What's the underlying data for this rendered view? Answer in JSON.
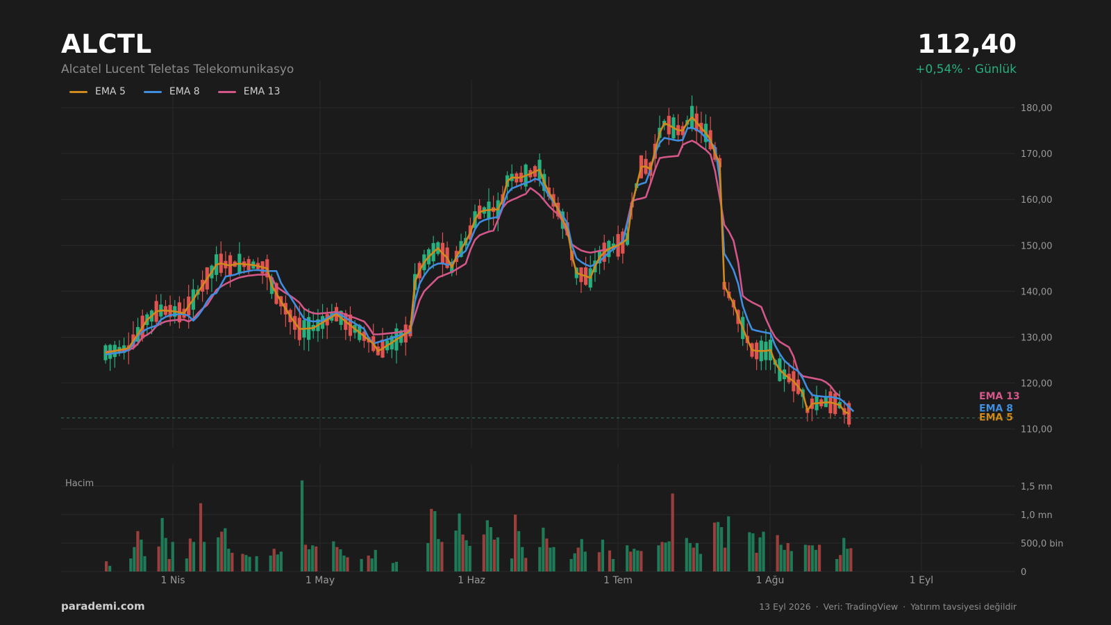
{
  "header": {
    "ticker": "ALCTL",
    "company": "Alcatel Lucent Teletas Telekomunikasyo",
    "price": "112,40",
    "change": "+0,54%",
    "period": "Günlük"
  },
  "footer": {
    "brand": "parademi.com",
    "date": "13 Eyl 2026",
    "source": "Veri: TradingView",
    "disclaimer": "Yatırım tavsiyesi değildir"
  },
  "colors": {
    "background": "#1b1b1b",
    "up": "#27b07e",
    "down": "#e0534f",
    "ema5": "#d08a1b",
    "ema8": "#3f8ee0",
    "ema13": "#d4578a",
    "grid": "#2a2a2a",
    "axis_text": "#9a9a9a"
  },
  "chart_data": [
    {
      "type": "candlestick",
      "title": "ALCTL",
      "series": [
        {
          "name": "EMA 5",
          "values": [
            126.6,
            126.8,
            127.0,
            127.2,
            127.4,
            127.6,
            129.2,
            130.6,
            132.2,
            133.8,
            134.6,
            135.6,
            135.8,
            135.8,
            135.7,
            135.6,
            135.4,
            135.2,
            136.8,
            138.2,
            139.8,
            141.2,
            142.8,
            144.2,
            145.8,
            146.1,
            145.8,
            145.6,
            145.9,
            146.0,
            145.9,
            145.8,
            145.7,
            145.5,
            145.2,
            145.0,
            141.2,
            139.5,
            137.8,
            136.2,
            134.6,
            133.1,
            131.8,
            131.8,
            131.9,
            132.0,
            132.6,
            133.2,
            133.8,
            134.4,
            135.0,
            134.2,
            133.4,
            132.6,
            131.8,
            131.0,
            130.2,
            129.4,
            128.6,
            127.0,
            127.5,
            128.2,
            128.8,
            129.5,
            130.1,
            130.8,
            131.4,
            142.0,
            144.5,
            146.3,
            147.5,
            148.5,
            149.4,
            148.2,
            147.3,
            145.2,
            147.6,
            149.2,
            150.8,
            152.8,
            155.6,
            157.2,
            157.6,
            157.7,
            157.8,
            157.8,
            160.0,
            164.0,
            164.8,
            164.7,
            164.8,
            165.2,
            165.6,
            166.1,
            166.5,
            163.7,
            161.6,
            159.8,
            157.8,
            155.5,
            153.6,
            147.8,
            144.0,
            143.6,
            143.3,
            142.9,
            145.4,
            147.4,
            148.5,
            149.2,
            149.7,
            150.0,
            150.6,
            151.4,
            158.8,
            163.0,
            167.1,
            167.2,
            166.6,
            170.5,
            174.5,
            176.6,
            176.2,
            175.6,
            175.1,
            175.0,
            176.8,
            177.9,
            176.8,
            175.6,
            174.5,
            173.0,
            170.0,
            168.0,
            141.2,
            139.2,
            137.3,
            134.4,
            132.0,
            129.5,
            127.2,
            127.0,
            127.0,
            127.0,
            127.2,
            124.5,
            122.9,
            121.9,
            121.1,
            120.4,
            119.2,
            117.8,
            114.0,
            115.5,
            115.6,
            115.7,
            115.8,
            115.8,
            115.5,
            115.2,
            113.8,
            113.3
          ],
          "color": "#d08a1b"
        },
        {
          "name": "EMA 8",
          "values": [
            126.2,
            126.4,
            126.5,
            126.6,
            126.8,
            127.2,
            128.5,
            130.2,
            131.2,
            131.8,
            132.2,
            132.5,
            133.8,
            134.4,
            134.8,
            134.9,
            135.0,
            135.0,
            134.6,
            133.6,
            134.6,
            136.0,
            137.8,
            139.2,
            139.6,
            141.4,
            143.2,
            143.4,
            143.6,
            144.0,
            144.2,
            144.4,
            144.6,
            144.6,
            144.5,
            144.4,
            144.4,
            144.4,
            141.8,
            140.2,
            138.8,
            137.2,
            135.6,
            134.0,
            133.6,
            133.4,
            133.5,
            133.6,
            134.2,
            134.8,
            135.2,
            134.8,
            134.2,
            133.6,
            133.0,
            132.4,
            131.8,
            129.8,
            128.6,
            128.9,
            129.2,
            129.5,
            129.8,
            130.2,
            130.5,
            130.8,
            131.0,
            137.7,
            141.6,
            143.4,
            144.8,
            145.6,
            146.0,
            146.1,
            145.7,
            146.0,
            147.2,
            148.0,
            148.8,
            151.0,
            153.5,
            155.0,
            155.5,
            155.8,
            156.0,
            156.2,
            158.5,
            161.3,
            162.4,
            162.8,
            163.2,
            163.6,
            163.9,
            164.5,
            164.2,
            162.5,
            160.8,
            159.4,
            158.0,
            156.5,
            154.8,
            150.0,
            147.2,
            146.4,
            145.8,
            145.4,
            145.9,
            146.5,
            147.5,
            148.4,
            149.2,
            150.0,
            151.0,
            154.8,
            158.6,
            163.0,
            163.4,
            163.7,
            166.5,
            170.0,
            172.3,
            173.4,
            173.2,
            173.0,
            172.8,
            173.0,
            175.5,
            175.6,
            175.2,
            174.5,
            173.4,
            172.4,
            171.4,
            164.5,
            148.2,
            146.5,
            144.6,
            141.6,
            136.8,
            134.0,
            131.7,
            131.4,
            131.2,
            131.0,
            130.8,
            128.2,
            126.4,
            124.9,
            124.0,
            123.2,
            122.6,
            121.0,
            118.8,
            117.4,
            117.2,
            117.1,
            117.0,
            117.0,
            116.8,
            116.6,
            115.8,
            114.8,
            113.8
          ],
          "color": "#3f8ee0"
        },
        {
          "name": "EMA 13",
          "values": [
            126.8,
            126.9,
            127.0,
            127.1,
            127.2,
            127.3,
            127.6,
            128.6,
            130.0,
            130.5,
            131.2,
            132.4,
            133.0,
            133.4,
            133.6,
            133.7,
            133.8,
            133.8,
            133.4,
            134.0,
            135.2,
            136.2,
            137.0,
            138.6,
            140.3,
            141.0,
            141.6,
            142.1,
            142.6,
            143.0,
            143.2,
            143.4,
            143.5,
            143.6,
            143.6,
            143.6,
            143.0,
            141.0,
            140.3,
            139.6,
            139.0,
            138.3,
            137.5,
            136.2,
            135.6,
            135.2,
            135.1,
            135.2,
            135.3,
            135.4,
            135.5,
            135.3,
            134.9,
            134.5,
            134.2,
            133.8,
            133.4,
            132.2,
            130.6,
            130.6,
            130.7,
            130.8,
            130.9,
            131.0,
            131.2,
            131.4,
            131.6,
            134.8,
            138.0,
            140.0,
            141.0,
            142.0,
            143.0,
            143.4,
            143.8,
            144.2,
            144.8,
            145.4,
            146.0,
            149.0,
            151.2,
            152.2,
            152.6,
            153.0,
            153.2,
            155.6,
            158.2,
            159.4,
            159.9,
            160.3,
            160.8,
            161.2,
            162.5,
            161.8,
            161.0,
            159.8,
            158.6,
            157.6,
            156.8,
            155.2,
            152.5,
            150.2,
            149.5,
            148.9,
            148.6,
            148.4,
            148.6,
            148.8,
            149.0,
            149.2,
            149.6,
            150.2,
            150.9,
            155.2,
            159.6,
            160.0,
            160.2,
            160.5,
            163.4,
            166.5,
            169.0,
            169.2,
            169.3,
            169.4,
            169.5,
            171.9,
            172.4,
            172.8,
            172.3,
            171.5,
            170.8,
            169.8,
            166.2,
            160.5,
            154.5,
            153.0,
            151.0,
            146.3,
            139.0,
            138.2,
            137.6,
            137.1,
            136.6,
            134.0,
            131.8,
            130.0,
            129.0,
            128.4,
            127.8,
            125.8,
            122.5,
            121.5,
            121.3,
            121.1,
            120.9,
            120.7,
            120.2,
            119.4,
            118.0,
            117.2
          ],
          "color": "#d4578a"
        }
      ],
      "ohlc_summary": "daily candles, 163 sessions, Mar–Sep 2026",
      "x_ticks": [
        "1 Nis",
        "1 May",
        "1 Haz",
        "1 Tem",
        "1 Ağu",
        "1 Eyl"
      ],
      "y_ticks": [
        "180,00",
        "170,00",
        "160,00",
        "150,00",
        "140,00",
        "130,00",
        "120,00",
        "110,00"
      ],
      "ylim": [
        105,
        187
      ],
      "last_price": 112.4,
      "legend_position": "top-left"
    },
    {
      "type": "bar",
      "title": "Hacim",
      "y_ticks": [
        "1,5 mn",
        "1,0 mn",
        "500,0 bin",
        "0"
      ],
      "ylim": [
        0,
        1900000
      ],
      "volume": [
        180000,
        100000,
        0,
        0,
        0,
        0,
        0,
        230000,
        430000,
        710000,
        560000,
        270000,
        0,
        0,
        0,
        440000,
        940000,
        590000,
        220000,
        520000,
        0,
        0,
        0,
        230000,
        580000,
        520000,
        0,
        1200000,
        520000,
        0,
        0,
        0,
        600000,
        700000,
        760000,
        400000,
        330000,
        0,
        0,
        310000,
        290000,
        260000,
        0,
        270000,
        0,
        0,
        0,
        280000,
        400000,
        300000,
        350000,
        0,
        0,
        0,
        0,
        0,
        1600000,
        470000,
        390000,
        460000,
        440000,
        0,
        0,
        0,
        0,
        530000,
        430000,
        390000,
        280000,
        250000,
        0,
        0,
        0,
        220000,
        0,
        280000,
        230000,
        380000,
        0,
        0,
        0,
        0,
        150000,
        170000,
        0,
        0,
        0,
        0,
        0,
        0,
        0,
        0,
        500000,
        1100000,
        1060000,
        570000,
        520000,
        0,
        0,
        0,
        720000,
        1020000,
        650000,
        550000,
        450000,
        0,
        0,
        0,
        650000,
        900000,
        780000,
        560000,
        600000,
        0,
        0,
        0,
        230000,
        1000000,
        710000,
        430000,
        240000,
        0,
        0,
        0,
        430000,
        770000,
        580000,
        420000,
        430000,
        0,
        0,
        0,
        0,
        220000,
        320000,
        420000,
        570000,
        350000,
        0,
        0,
        0,
        340000,
        560000,
        0,
        370000,
        220000,
        0,
        0,
        0,
        460000,
        350000,
        400000,
        370000,
        360000,
        0,
        0,
        0,
        0,
        460000,
        520000,
        510000,
        530000,
        1370000,
        0,
        0,
        0,
        590000,
        500000,
        420000,
        500000,
        310000,
        0,
        0,
        0,
        860000,
        870000,
        780000,
        420000,
        970000,
        0,
        0,
        0,
        0,
        0,
        690000,
        670000,
        330000,
        600000,
        700000,
        0,
        0,
        0,
        640000,
        470000,
        380000,
        500000,
        360000,
        0,
        0,
        0,
        470000,
        460000,
        460000,
        380000,
        470000,
        0,
        0,
        0,
        0,
        220000,
        290000,
        590000,
        400000,
        410000
      ]
    }
  ]
}
